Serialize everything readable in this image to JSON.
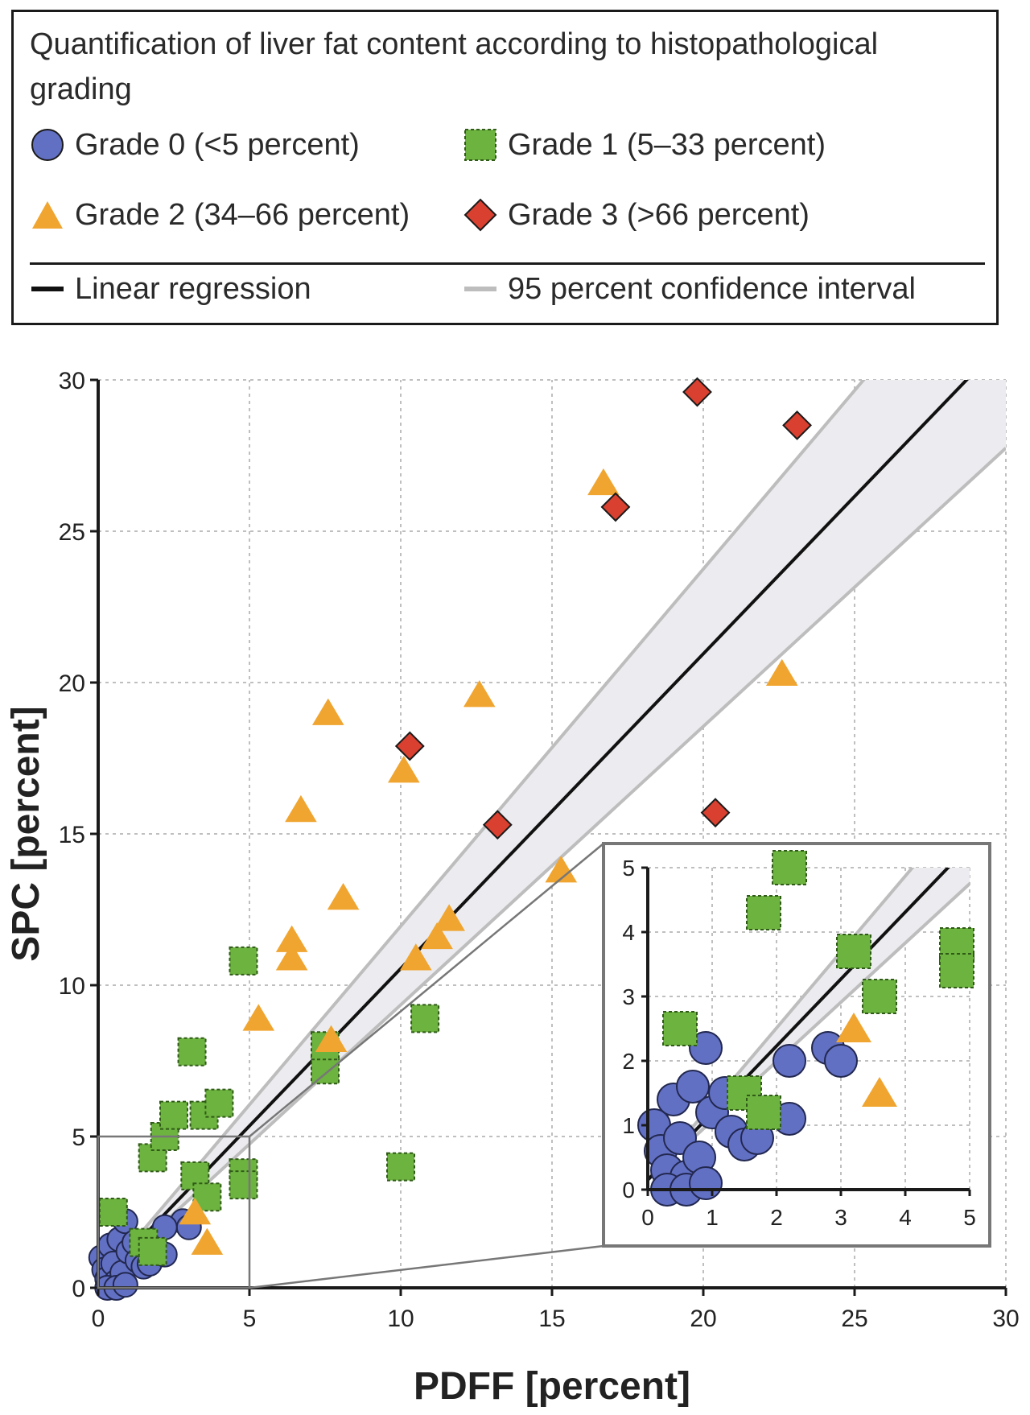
{
  "legend": {
    "title": "Quantification of liver fat content according to histopathological grading",
    "grade0": "Grade 0 (<5 percent)",
    "grade1": "Grade 1 (5–33 percent)",
    "grade2": "Grade 2 (34–66 percent)",
    "grade3": "Grade 3 (>66 percent)",
    "regression": "Linear regression",
    "ci": "95 percent confidence interval"
  },
  "colors": {
    "grade0": "#6270c4",
    "grade1": "#6db33f",
    "grade2": "#f0a530",
    "grade3": "#d9402f",
    "regression": "#111111",
    "ci_line": "#bdbdbd",
    "ci_fill": "#ececf0",
    "grid": "#bfbfbf"
  },
  "chart_data": {
    "type": "scatter",
    "xlabel": "PDFF [percent]",
    "ylabel": "SPC [percent]",
    "xlim": [
      0,
      30
    ],
    "ylim": [
      0,
      30
    ],
    "xticks": [
      0,
      5,
      10,
      15,
      20,
      25,
      30
    ],
    "yticks": [
      0,
      5,
      10,
      15,
      20,
      25,
      30
    ],
    "grid": true,
    "regression": {
      "slope": 1.04,
      "intercept": 0.15,
      "ci_slope_low": 0.92,
      "ci_slope_high": 1.18
    },
    "series": [
      {
        "name": "Grade 0 (<5 percent)",
        "key": "grade0",
        "marker": "circle",
        "points": [
          [
            0.1,
            1.0
          ],
          [
            0.2,
            0.6
          ],
          [
            0.3,
            0.3
          ],
          [
            0.4,
            1.4
          ],
          [
            0.5,
            0.8
          ],
          [
            0.6,
            0.2
          ],
          [
            0.7,
            1.6
          ],
          [
            0.8,
            0.5
          ],
          [
            0.9,
            2.2
          ],
          [
            1.0,
            1.2
          ],
          [
            1.2,
            1.5
          ],
          [
            1.3,
            0.9
          ],
          [
            1.5,
            0.7
          ],
          [
            1.7,
            0.8
          ],
          [
            2.2,
            1.1
          ],
          [
            2.8,
            2.2
          ],
          [
            3.0,
            2.0
          ],
          [
            2.2,
            2.0
          ],
          [
            0.3,
            0.0
          ],
          [
            0.6,
            0.0
          ],
          [
            0.9,
            0.1
          ]
        ]
      },
      {
        "name": "Grade 1 (5–33 percent)",
        "key": "grade1",
        "marker": "square",
        "points": [
          [
            0.5,
            2.5
          ],
          [
            1.8,
            4.3
          ],
          [
            2.2,
            5.0
          ],
          [
            3.1,
            7.8
          ],
          [
            2.5,
            5.7
          ],
          [
            3.5,
            5.7
          ],
          [
            4.0,
            6.1
          ],
          [
            4.8,
            10.8
          ],
          [
            4.8,
            3.8
          ],
          [
            4.8,
            3.4
          ],
          [
            7.5,
            7.2
          ],
          [
            7.5,
            8.0
          ],
          [
            10.8,
            8.9
          ],
          [
            10.0,
            4.0
          ],
          [
            3.2,
            3.7
          ],
          [
            3.6,
            3.0
          ],
          [
            1.5,
            1.5
          ],
          [
            1.8,
            1.2
          ]
        ]
      },
      {
        "name": "Grade 2 (34–66 percent)",
        "key": "grade2",
        "marker": "triangle",
        "points": [
          [
            16.7,
            26.6
          ],
          [
            12.6,
            19.6
          ],
          [
            7.6,
            19.0
          ],
          [
            10.1,
            17.1
          ],
          [
            6.7,
            15.8
          ],
          [
            10.5,
            10.9
          ],
          [
            8.1,
            12.9
          ],
          [
            6.4,
            11.5
          ],
          [
            6.4,
            10.9
          ],
          [
            11.2,
            11.6
          ],
          [
            11.6,
            12.2
          ],
          [
            5.3,
            8.9
          ],
          [
            7.7,
            8.2
          ],
          [
            15.3,
            13.8
          ],
          [
            22.6,
            20.3
          ],
          [
            3.2,
            2.5
          ],
          [
            3.6,
            1.5
          ]
        ]
      },
      {
        "name": "Grade 3 (>66 percent)",
        "key": "grade3",
        "marker": "diamond",
        "points": [
          [
            19.8,
            29.6
          ],
          [
            23.1,
            28.5
          ],
          [
            17.1,
            25.8
          ],
          [
            10.3,
            17.9
          ],
          [
            13.2,
            15.3
          ],
          [
            20.4,
            15.7
          ]
        ]
      }
    ],
    "inset": {
      "xlim": [
        0,
        5
      ],
      "ylim": [
        0,
        5
      ],
      "xticks": [
        0,
        1,
        2,
        3,
        4,
        5
      ],
      "yticks": [
        0,
        1,
        2,
        3,
        4,
        5
      ],
      "source_region": [
        0,
        5,
        0,
        5
      ]
    }
  }
}
